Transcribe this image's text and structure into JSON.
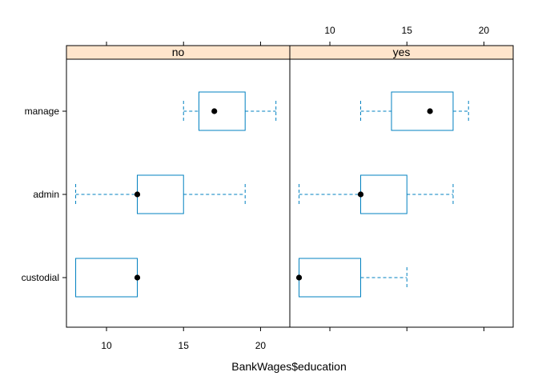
{
  "chart_data": {
    "type": "boxplot",
    "xlabel": "BankWages$education",
    "categories": [
      "manage",
      "admin",
      "custodial"
    ],
    "xlim": [
      7.4,
      21.9
    ],
    "x_ticks": [
      10,
      15,
      20
    ],
    "panels": [
      {
        "strip_label": "no",
        "boxes": [
          {
            "category": "manage",
            "whisker_low": 15,
            "q1": 16,
            "median": 17,
            "q3": 19,
            "whisker_high": 21
          },
          {
            "category": "admin",
            "whisker_low": 8,
            "q1": 12,
            "median": 12,
            "q3": 15,
            "whisker_high": 19
          },
          {
            "category": "custodial",
            "whisker_low": 8,
            "q1": 8,
            "median": 12,
            "q3": 12,
            "whisker_high": 12
          }
        ]
      },
      {
        "strip_label": "yes",
        "boxes": [
          {
            "category": "manage",
            "whisker_low": 12,
            "q1": 14,
            "median": 16.5,
            "q3": 18,
            "whisker_high": 19
          },
          {
            "category": "admin",
            "whisker_low": 8,
            "q1": 12,
            "median": 12,
            "q3": 15,
            "whisker_high": 18
          },
          {
            "category": "custodial",
            "whisker_low": 8,
            "q1": 8,
            "median": 8,
            "q3": 12,
            "whisker_high": 15
          }
        ]
      }
    ],
    "colors": {
      "box": "#0080C0",
      "strip_bg": "#FFE5CC",
      "median_dot": "#000000"
    }
  }
}
